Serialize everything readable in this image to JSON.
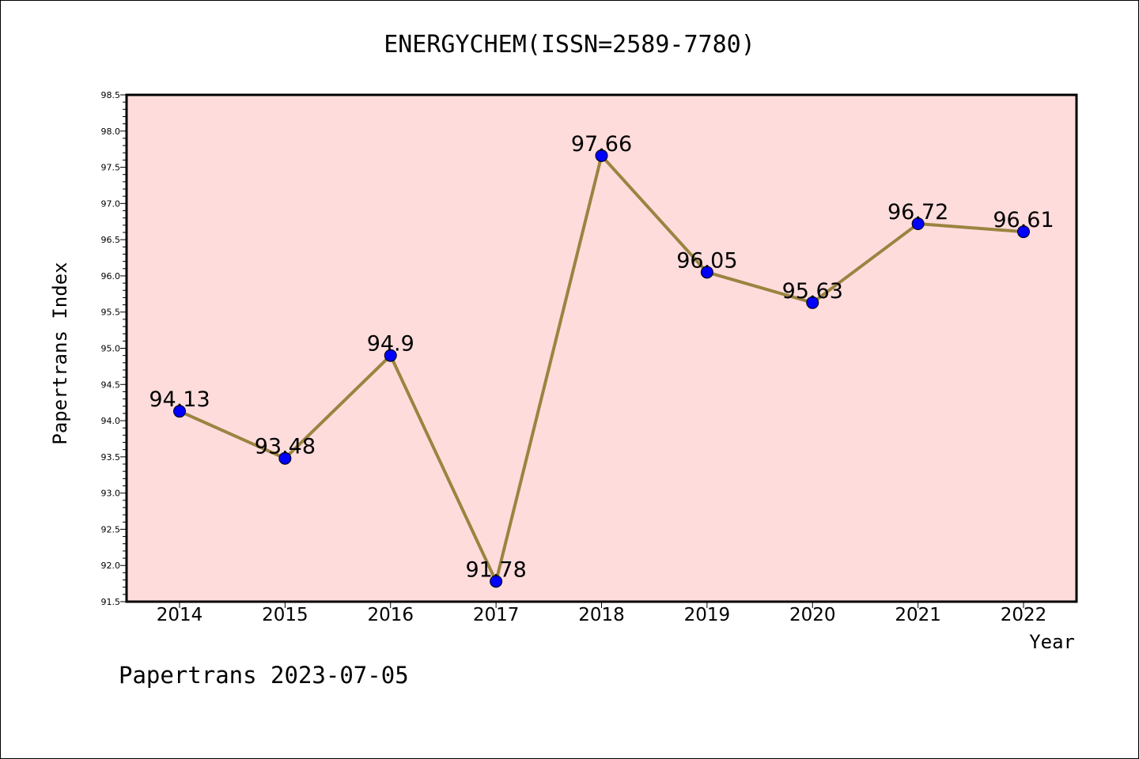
{
  "chart_data": {
    "type": "line",
    "title": "ENERGYCHEM(ISSN=2589-7780)",
    "xlabel": "Year",
    "ylabel": "Papertrans Index",
    "x": [
      "2014",
      "2015",
      "2016",
      "2017",
      "2018",
      "2019",
      "2020",
      "2021",
      "2022"
    ],
    "series": [
      {
        "values": [
          94.13,
          93.48,
          94.9,
          91.78,
          97.66,
          96.05,
          95.63,
          96.72,
          96.61
        ],
        "labels": [
          "94.13",
          "93.48",
          "94.9",
          "91.78",
          "97.66",
          "96.05",
          "95.63",
          "96.72",
          "96.61"
        ],
        "line_color": "#9a8440",
        "marker_color": "#0000ff"
      }
    ],
    "ylim": [
      91.5,
      98.5
    ],
    "yticks": [
      "91.5",
      "92.0",
      "92.5",
      "93.0",
      "93.5",
      "94.0",
      "94.5",
      "95.0",
      "95.5",
      "96.0",
      "96.5",
      "97.0",
      "97.5",
      "98.0",
      "98.5"
    ],
    "plot_background": "#ffdcdc",
    "grid": false,
    "legend": "none"
  },
  "footer": {
    "text": "Papertrans 2023-07-05"
  }
}
